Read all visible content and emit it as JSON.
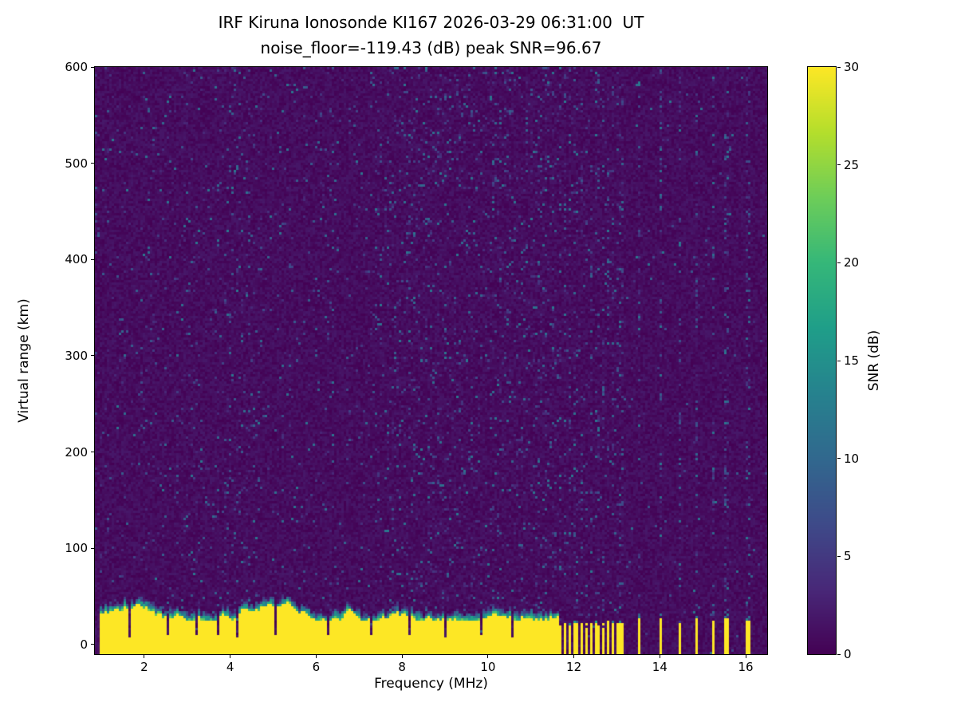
{
  "chart_data": {
    "type": "heatmap",
    "title": "IRF Kiruna Ionosonde KI167 2026-03-29 06:31:00  UT",
    "subtitle": "noise_floor=-119.43 (dB) peak SNR=96.67",
    "xlabel": "Frequency (MHz)",
    "ylabel": "Virtual range (km)",
    "colorbar_label": "SNR (dB)",
    "colormap": "viridis",
    "station": "IRF Kiruna Ionosonde KI167",
    "timestamp_ut": "2026-03-29 06:31:00",
    "noise_floor_db": -119.43,
    "peak_snr_db": 96.67,
    "x_range_mhz": [
      0.85,
      16.5
    ],
    "y_range_km": [
      -10,
      600
    ],
    "snr_range_db": [
      0,
      30
    ],
    "x_ticks": [
      2,
      4,
      6,
      8,
      10,
      12,
      14,
      16
    ],
    "y_ticks": [
      0,
      100,
      200,
      300,
      400,
      500,
      600
    ],
    "colorbar_ticks": [
      0,
      5,
      10,
      15,
      20,
      25,
      30
    ],
    "grid": false,
    "legend": "none",
    "features": {
      "background_snr_db": [
        0,
        2
      ],
      "speckle_snr_db": [
        3,
        12
      ],
      "ground_echo_band": {
        "freq_start_mhz": 0.95,
        "freq_end_mhz": 11.63,
        "top_km_min": 25,
        "top_km_max": 46,
        "fringe_km": 10,
        "snr_db": 30
      },
      "band_notches_mhz": [
        1.68,
        2.55,
        3.22,
        3.7,
        4.18,
        5.05,
        6.28,
        7.3,
        8.15,
        9.0,
        9.85,
        10.55
      ],
      "comb_region": {
        "freq_start_mhz": 11.63,
        "freq_end_mhz": 13.15,
        "period_mhz": 0.125,
        "bar_width_mhz": 0.07,
        "top_km": 21
      },
      "sparse_bars_mhz": [
        13.5,
        14.0,
        14.45,
        14.85,
        15.25,
        15.55,
        16.05
      ]
    }
  }
}
